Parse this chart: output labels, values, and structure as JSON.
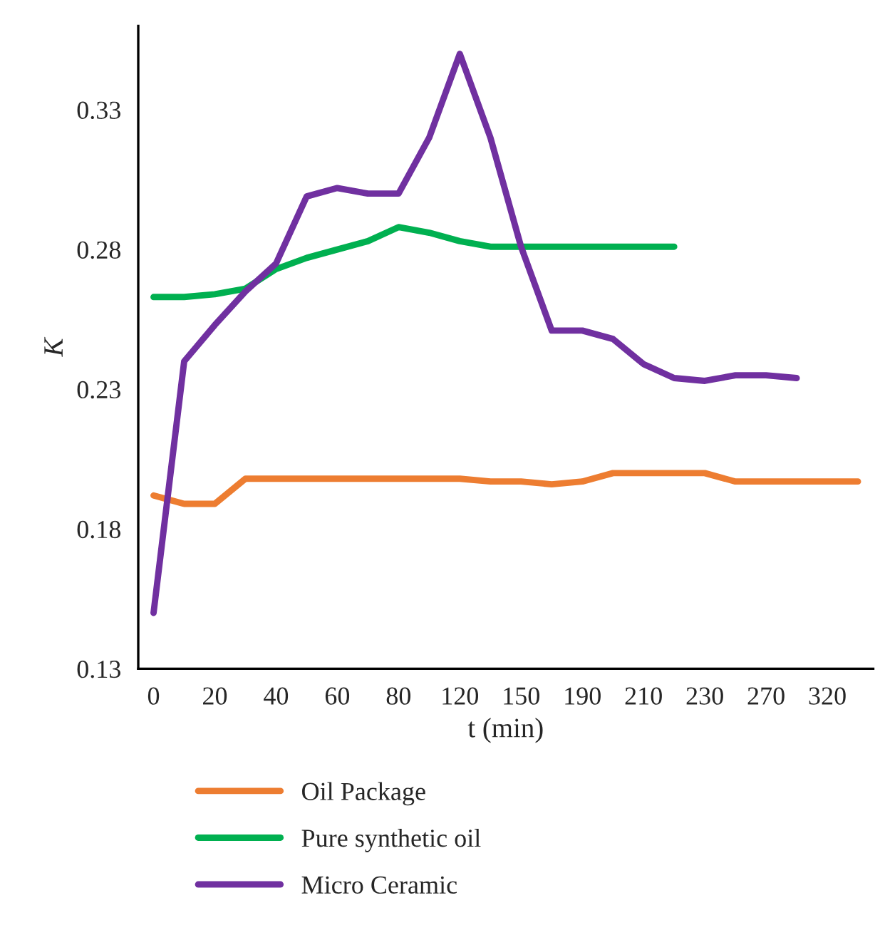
{
  "chart_data": {
    "type": "line",
    "xlabel": "t (min)",
    "ylabel": "K",
    "categories": [
      "0",
      null,
      "20",
      null,
      "40",
      null,
      "60",
      null,
      "80",
      null,
      "120",
      null,
      "150",
      null,
      "190",
      null,
      "210",
      null,
      "230",
      null,
      "270",
      null,
      "320",
      null
    ],
    "series": [
      {
        "name": "Oil Package",
        "color": "#ed7d31",
        "values": [
          0.192,
          0.189,
          0.189,
          0.198,
          0.198,
          0.198,
          0.198,
          0.198,
          0.198,
          0.198,
          0.198,
          0.197,
          0.197,
          0.196,
          0.197,
          0.2,
          0.2,
          0.2,
          0.2,
          0.197,
          0.197,
          0.197,
          0.197,
          0.197
        ]
      },
      {
        "name": "Pure synthetic oil",
        "color": "#00b050",
        "values": [
          0.263,
          0.263,
          0.264,
          0.266,
          0.273,
          0.277,
          0.28,
          0.283,
          0.288,
          0.286,
          0.283,
          0.281,
          0.281,
          0.281,
          0.281,
          0.281,
          0.281,
          0.281,
          null,
          null,
          null,
          null,
          null,
          null
        ]
      },
      {
        "name": "Micro Ceramic",
        "color": "#7030a0",
        "values": [
          0.15,
          0.24,
          0.253,
          0.265,
          0.275,
          0.299,
          0.302,
          0.3,
          0.3,
          0.32,
          0.35,
          0.32,
          0.281,
          0.251,
          0.251,
          0.248,
          0.239,
          0.234,
          0.233,
          0.235,
          0.235,
          0.234,
          null,
          null
        ]
      }
    ],
    "ylim": [
      0.13,
      0.36
    ],
    "yticks": [
      0.13,
      0.18,
      0.23,
      0.28,
      0.33
    ],
    "grid": false,
    "legend": "bottom",
    "marker": "none",
    "line_style": "solid"
  }
}
